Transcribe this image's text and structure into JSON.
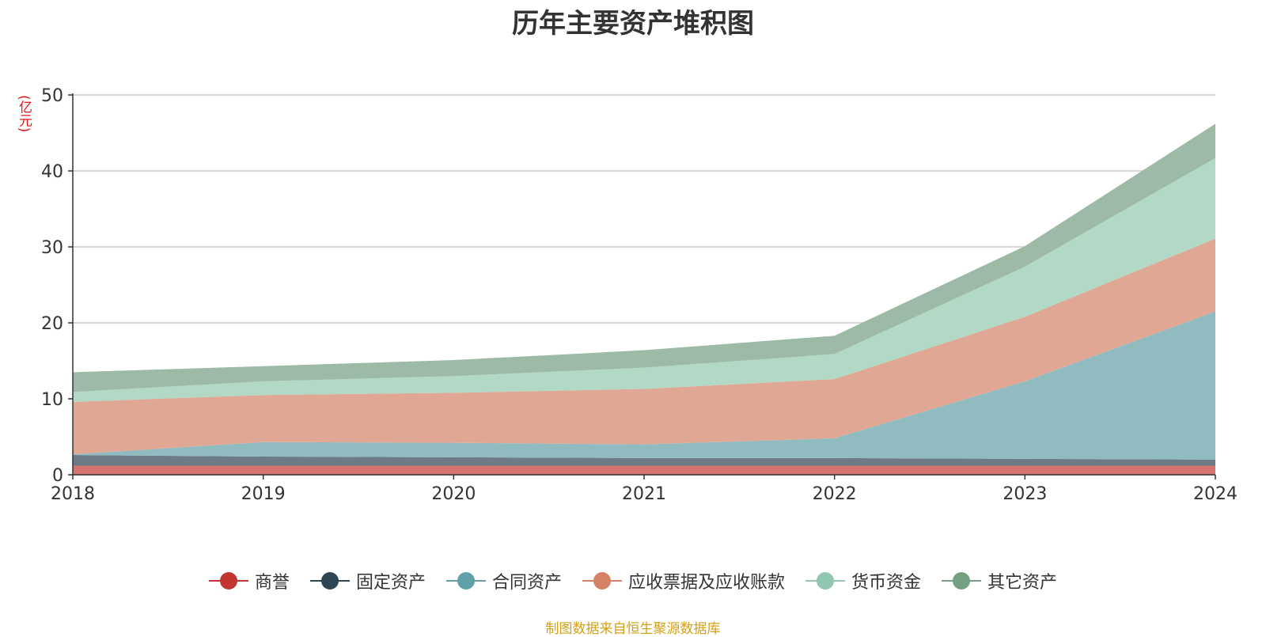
{
  "chart_data": {
    "type": "area",
    "stacked": true,
    "title": "历年主要资产堆积图",
    "ylabel": "(亿元)",
    "ylim": [
      0,
      50
    ],
    "yticks": [
      0,
      10,
      20,
      30,
      40,
      50
    ],
    "categories": [
      "2018",
      "2019",
      "2020",
      "2021",
      "2022",
      "2023",
      "2024"
    ],
    "grid": true,
    "legend_position": "bottom",
    "series": [
      {
        "name": "商誉",
        "color": "#c23531",
        "fill": "#d5736e",
        "values": [
          1.2,
          1.2,
          1.2,
          1.2,
          1.2,
          1.2,
          1.2
        ]
      },
      {
        "name": "固定资产",
        "color": "#2f4554",
        "fill": "#6d7b87",
        "values": [
          1.4,
          1.2,
          1.1,
          1.0,
          1.0,
          0.9,
          0.8
        ]
      },
      {
        "name": "合同资产",
        "color": "#61a0a8",
        "fill": "#90bcc1",
        "values": [
          0.1,
          1.9,
          1.9,
          1.8,
          2.6,
          10.2,
          19.5
        ]
      },
      {
        "name": "应收票据及应收账款",
        "color": "#d48265",
        "fill": "#e0a894",
        "values": [
          6.9,
          6.2,
          6.6,
          7.3,
          7.8,
          8.5,
          9.6
        ]
      },
      {
        "name": "货币资金",
        "color": "#91c7ae",
        "fill": "#b1d9c6",
        "values": [
          1.3,
          1.8,
          2.2,
          2.8,
          3.3,
          6.6,
          10.6
        ]
      },
      {
        "name": "其它资产",
        "color": "#749f83",
        "fill": "#9cbaa6",
        "values": [
          2.6,
          2.0,
          2.1,
          2.3,
          2.4,
          2.7,
          4.5
        ]
      }
    ]
  },
  "source_note": "制图数据来自恒生聚源数据库"
}
